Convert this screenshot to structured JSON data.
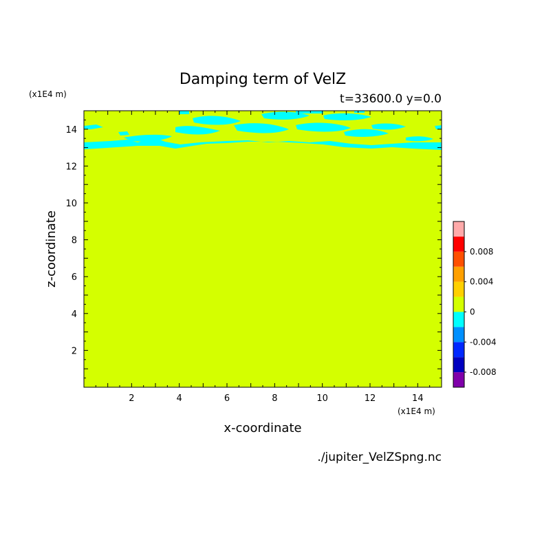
{
  "chart_data": {
    "type": "heatmap",
    "title": "Damping term of VelZ",
    "subtitle": "t=33600.0 y=0.0",
    "xlabel": "x-coordinate",
    "ylabel": "z-coordinate",
    "x_unit": "(x1E4 m)",
    "y_unit": "(x1E4 m)",
    "footer": "./jupiter_VelZSpng.nc",
    "xlim": [
      0,
      15
    ],
    "ylim": [
      0,
      15
    ],
    "x_ticks": [
      "2",
      "4",
      "6",
      "8",
      "10",
      "12",
      "14"
    ],
    "y_ticks": [
      "2",
      "4",
      "6",
      "8",
      "10",
      "12",
      "14"
    ],
    "background_level": 0,
    "background_color": "#d4ff00",
    "negative_region_color": "#00ffff",
    "negative_region_zrange": [
      12.6,
      15
    ],
    "colorbar": {
      "levels": [
        {
          "lo": -0.01,
          "hi": -0.008,
          "color": "#8000aa"
        },
        {
          "lo": -0.008,
          "hi": -0.006,
          "color": "#0000c0"
        },
        {
          "lo": -0.006,
          "hi": -0.004,
          "color": "#0028ff"
        },
        {
          "lo": -0.004,
          "hi": -0.002,
          "color": "#0090ff"
        },
        {
          "lo": -0.002,
          "hi": 0.0,
          "color": "#00ffff"
        },
        {
          "lo": 0.0,
          "hi": 0.002,
          "color": "#d4ff00"
        },
        {
          "lo": 0.002,
          "hi": 0.004,
          "color": "#ffd000"
        },
        {
          "lo": 0.004,
          "hi": 0.006,
          "color": "#ffa000"
        },
        {
          "lo": 0.006,
          "hi": 0.008,
          "color": "#ff5000"
        },
        {
          "lo": 0.008,
          "hi": 0.01,
          "color": "#ff0000"
        },
        {
          "lo": 0.01,
          "hi": 0.012,
          "color": "#ffaaaa"
        }
      ],
      "tick_labels": [
        "-0.008",
        "-0.004",
        "0",
        "0.004",
        "0.008"
      ],
      "tick_values": [
        -0.008,
        -0.004,
        0,
        0.004,
        0.008
      ]
    }
  }
}
